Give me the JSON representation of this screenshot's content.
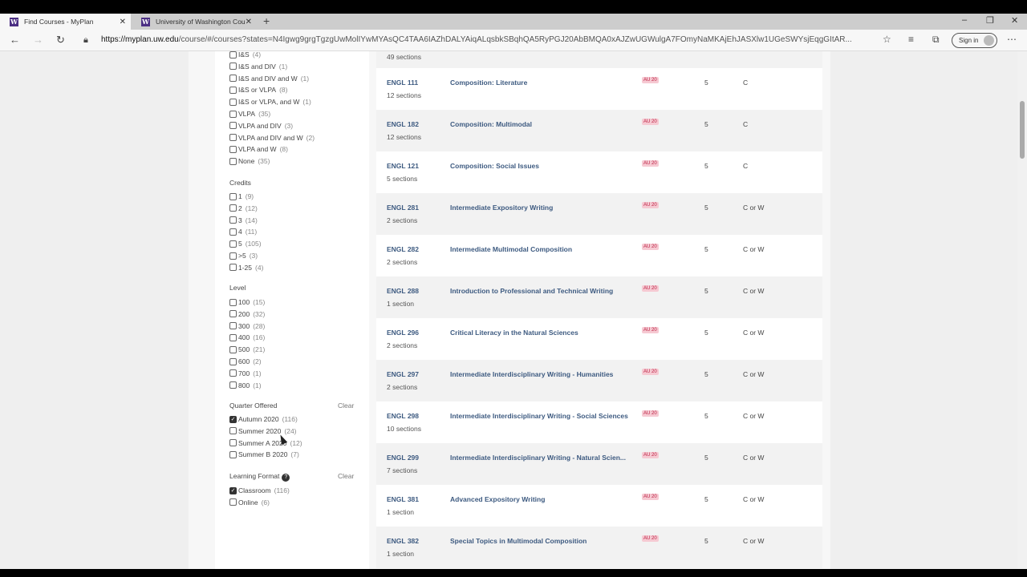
{
  "browser": {
    "tabs": [
      {
        "title": "Find Courses - MyPlan",
        "active": true
      },
      {
        "title": "University of Washington Course",
        "active": false
      }
    ],
    "url_host": "https://myplan.uw.edu",
    "url_rest": "/course/#/courses?states=N4Igwg9grgTgzgUwMolIYwMYAsQC4TAA6IAZhDALYAiqALqsbkSBqhQA5RyPGJ20AbBMQA0xAJZwUGWulgA7FOmyNaMKAjEhJASXlw1UGeSWYsjEqgGItAR...",
    "sign_in": "Sign in"
  },
  "filters": {
    "gen_ed": [
      {
        "label": "I&S",
        "count": "(4)"
      },
      {
        "label": "I&S and DIV",
        "count": "(1)"
      },
      {
        "label": "I&S and DIV and W",
        "count": "(1)"
      },
      {
        "label": "I&S or VLPA",
        "count": "(8)"
      },
      {
        "label": "I&S or VLPA, and W",
        "count": "(1)"
      },
      {
        "label": "VLPA",
        "count": "(35)"
      },
      {
        "label": "VLPA and DIV",
        "count": "(3)"
      },
      {
        "label": "VLPA and DIV and W",
        "count": "(2)"
      },
      {
        "label": "VLPA and W",
        "count": "(8)"
      },
      {
        "label": "None",
        "count": "(35)"
      }
    ],
    "credits": {
      "heading": "Credits",
      "items": [
        {
          "label": "1",
          "count": "(9)"
        },
        {
          "label": "2",
          "count": "(12)"
        },
        {
          "label": "3",
          "count": "(14)"
        },
        {
          "label": "4",
          "count": "(11)"
        },
        {
          "label": "5",
          "count": "(105)"
        },
        {
          "label": ">5",
          "count": "(3)"
        },
        {
          "label": "1-25",
          "count": "(4)"
        }
      ]
    },
    "level": {
      "heading": "Level",
      "items": [
        {
          "label": "100",
          "count": "(15)"
        },
        {
          "label": "200",
          "count": "(32)"
        },
        {
          "label": "300",
          "count": "(28)"
        },
        {
          "label": "400",
          "count": "(16)"
        },
        {
          "label": "500",
          "count": "(21)"
        },
        {
          "label": "600",
          "count": "(2)"
        },
        {
          "label": "700",
          "count": "(1)"
        },
        {
          "label": "800",
          "count": "(1)"
        }
      ]
    },
    "quarter": {
      "heading": "Quarter Offered",
      "clear": "Clear",
      "items": [
        {
          "label": "Autumn 2020",
          "count": "(116)",
          "checked": true
        },
        {
          "label": "Summer 2020",
          "count": "(24)"
        },
        {
          "label": "Summer A 2020",
          "count": "(12)"
        },
        {
          "label": "Summer B 2020",
          "count": "(7)"
        }
      ]
    },
    "format": {
      "heading": "Learning Format",
      "clear": "Clear",
      "help": "?",
      "items": [
        {
          "label": "Classroom",
          "count": "(116)",
          "checked": true
        },
        {
          "label": "Online",
          "count": "(6)"
        }
      ]
    }
  },
  "results": {
    "top_partial_sections": "49 sections",
    "courses": [
      {
        "code": "ENGL 111",
        "sections": "12 sections",
        "title": "Composition: Literature",
        "term": "AU 20",
        "credits": "5",
        "gen_ed": "C"
      },
      {
        "code": "ENGL 182",
        "sections": "12 sections",
        "title": "Composition: Multimodal",
        "term": "AU 20",
        "credits": "5",
        "gen_ed": "C"
      },
      {
        "code": "ENGL 121",
        "sections": "5 sections",
        "title": "Composition: Social Issues",
        "term": "AU 20",
        "credits": "5",
        "gen_ed": "C"
      },
      {
        "code": "ENGL 281",
        "sections": "2 sections",
        "title": "Intermediate Expository Writing",
        "term": "AU 20",
        "credits": "5",
        "gen_ed": "C or W"
      },
      {
        "code": "ENGL 282",
        "sections": "2 sections",
        "title": "Intermediate Multimodal Composition",
        "term": "AU 20",
        "credits": "5",
        "gen_ed": "C or W"
      },
      {
        "code": "ENGL 288",
        "sections": "1 section",
        "title": "Introduction to Professional and Technical Writing",
        "term": "AU 20",
        "credits": "5",
        "gen_ed": "C or W"
      },
      {
        "code": "ENGL 296",
        "sections": "2 sections",
        "title": "Critical Literacy in the Natural Sciences",
        "term": "AU 20",
        "credits": "5",
        "gen_ed": "C or W"
      },
      {
        "code": "ENGL 297",
        "sections": "2 sections",
        "title": "Intermediate Interdisciplinary Writing - Humanities",
        "term": "AU 20",
        "credits": "5",
        "gen_ed": "C or W"
      },
      {
        "code": "ENGL 298",
        "sections": "10 sections",
        "title": "Intermediate Interdisciplinary Writing - Social Sciences",
        "term": "AU 20",
        "credits": "5",
        "gen_ed": "C or W"
      },
      {
        "code": "ENGL 299",
        "sections": "7 sections",
        "title": "Intermediate Interdisciplinary Writing - Natural Scien...",
        "term": "AU 20",
        "credits": "5",
        "gen_ed": "C or W"
      },
      {
        "code": "ENGL 381",
        "sections": "1 section",
        "title": "Advanced Expository Writing",
        "term": "AU 20",
        "credits": "5",
        "gen_ed": "C or W"
      },
      {
        "code": "ENGL 382",
        "sections": "1 section",
        "title": "Special Topics in Multimodal Composition",
        "term": "AU 20",
        "credits": "5",
        "gen_ed": "C or W"
      }
    ]
  }
}
